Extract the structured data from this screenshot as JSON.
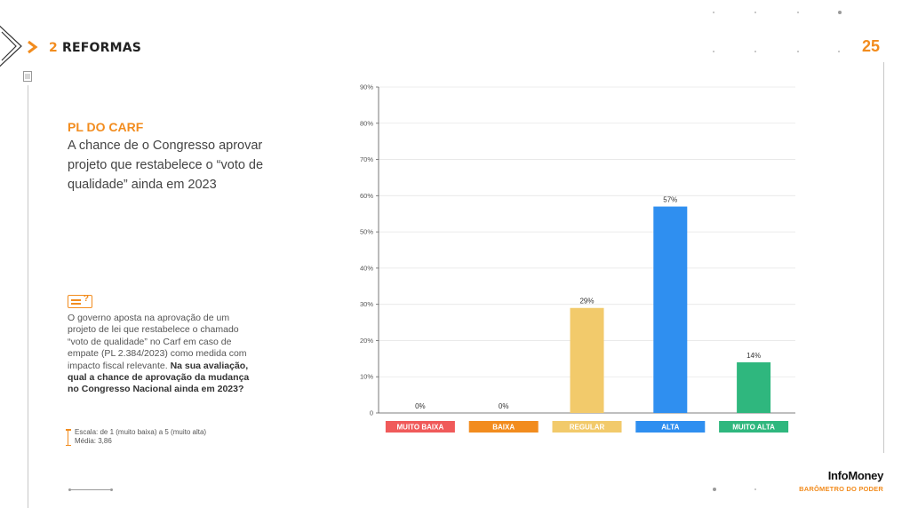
{
  "header": {
    "section_number": "2",
    "section_title": "REFORMAS",
    "page_number": "25"
  },
  "question": {
    "kicker": "PL DO CARF",
    "text": "A chance de o Congresso aprovar projeto que restabelece o “voto de qualidade” ainda em 2023"
  },
  "description": {
    "intro": "O governo aposta na aprovação de um projeto de lei que restabelece o chamado “voto de qualidade” no Carf em caso de empate (PL 2.384/2023) como medida com impacto fiscal relevante.",
    "question_bold": "Na sua avaliação, qual a chance de aprovação da mudança no Congresso Nacional ainda em 2023?",
    "scale": "Escala: de 1 (muito baixa) a 5 (muito alta)",
    "mean": "Média: 3,86"
  },
  "footer": {
    "brand": "InfoMoney",
    "subtitle": "BARÔMETRO DO PODER"
  },
  "chart_data": {
    "type": "bar",
    "categories": [
      "MUITO BAIXA",
      "BAIXA",
      "REGULAR",
      "ALTA",
      "MUITO ALTA"
    ],
    "values": [
      0,
      0,
      29,
      57,
      14
    ],
    "value_labels": [
      "0%",
      "0%",
      "29%",
      "57%",
      "14%"
    ],
    "colors": [
      "#f05a5a",
      "#f28c1e",
      "#f2ca6b",
      "#2f8ff0",
      "#2fb77e"
    ],
    "ylim": [
      0,
      90
    ],
    "yticks": [
      0,
      10,
      20,
      30,
      40,
      50,
      60,
      70,
      80,
      90
    ],
    "ytick_labels": [
      "0",
      "10%",
      "20%",
      "30%",
      "40%",
      "50%",
      "60%",
      "70%",
      "80%",
      "90%"
    ],
    "grid": true
  }
}
